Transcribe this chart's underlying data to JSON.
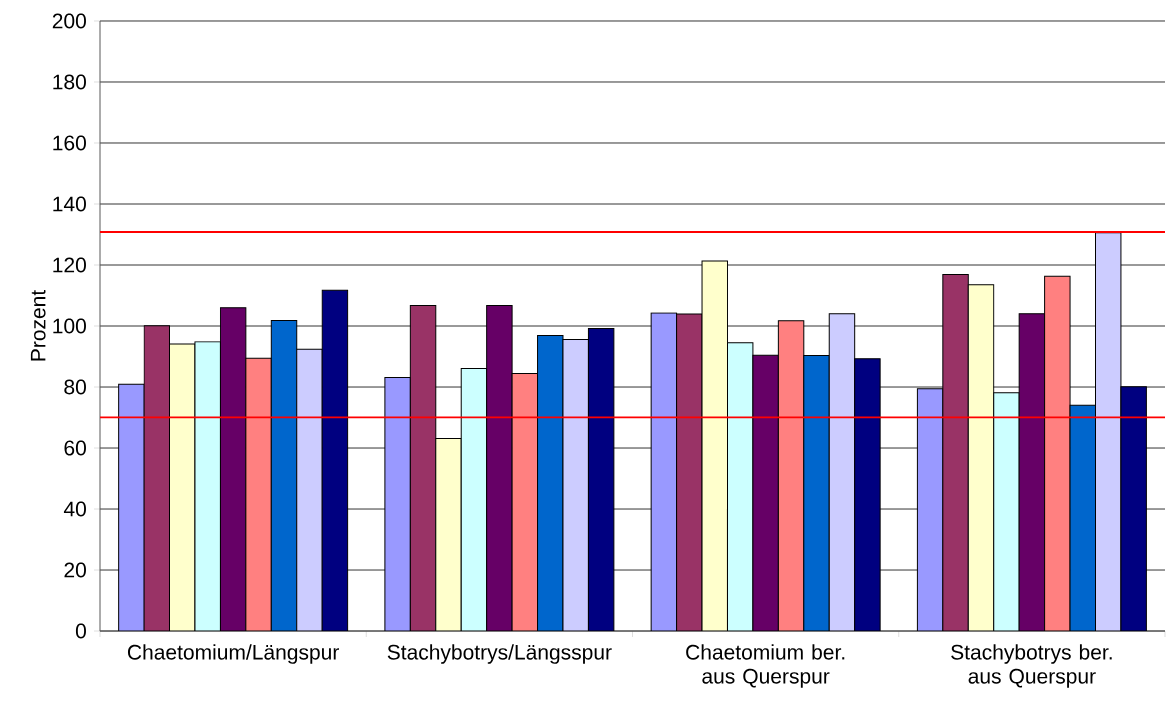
{
  "chart_data": {
    "type": "bar",
    "ylabel": "Prozent",
    "categories": [
      "Chaetomium/Längspur",
      "Stachybotrys/Längsspur",
      "Chaetomium ber. aus Querspur",
      "Stachybotrys ber. aus Querspur"
    ],
    "series": [
      {
        "color": "#9999ff",
        "values": [
          80.9,
          83.1,
          104.3,
          79.4
        ]
      },
      {
        "color": "#993366",
        "values": [
          100.1,
          106.7,
          103.9,
          116.9
        ]
      },
      {
        "color": "#ffffcc",
        "values": [
          94.1,
          63.1,
          121.3,
          113.5
        ]
      },
      {
        "color": "#ccffff",
        "values": [
          94.8,
          86.1,
          94.5,
          78.1
        ]
      },
      {
        "color": "#660066",
        "values": [
          106.0,
          106.7,
          90.4,
          104.0
        ]
      },
      {
        "color": "#ff8080",
        "values": [
          89.4,
          84.4,
          101.7,
          116.3
        ]
      },
      {
        "color": "#0066cc",
        "values": [
          101.8,
          96.9,
          90.3,
          74.0
        ]
      },
      {
        "color": "#ccccff",
        "values": [
          92.4,
          95.6,
          104.0,
          130.6
        ]
      },
      {
        "color": "#000080",
        "values": [
          111.7,
          99.2,
          89.3,
          80.1
        ]
      }
    ],
    "ylim": [
      0,
      200
    ],
    "yticks": [
      0,
      20,
      40,
      60,
      80,
      100,
      120,
      140,
      160,
      180,
      200
    ],
    "grid": "y",
    "ref_lines": [
      {
        "axis": "y",
        "value": 130.8,
        "color": "#ff0000",
        "line_style": "solid"
      },
      {
        "axis": "y",
        "value": 70,
        "color": "#ff0000",
        "line_style": "solid"
      }
    ]
  }
}
